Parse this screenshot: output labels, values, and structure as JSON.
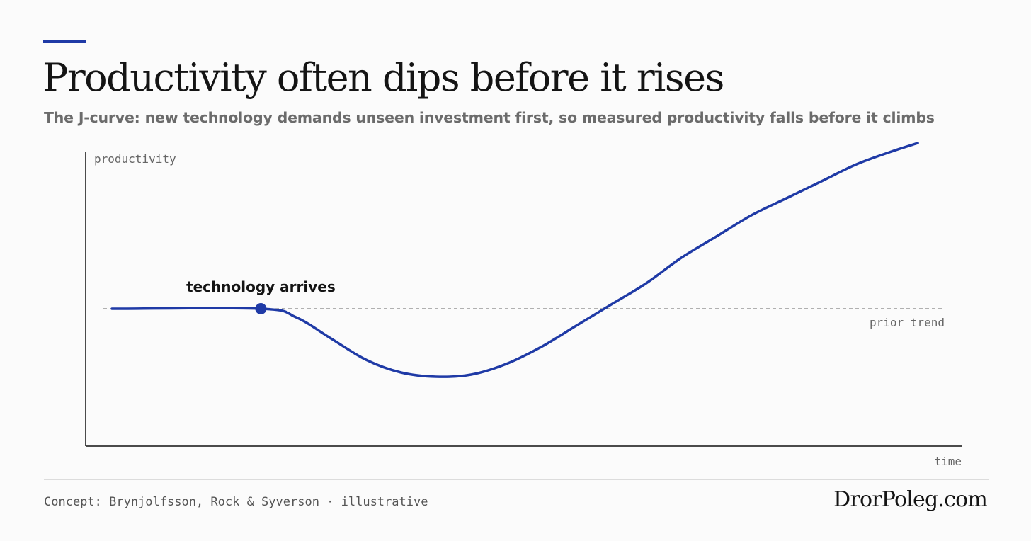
{
  "header": {
    "title": "Productivity often dips before it rises",
    "subtitle": "The J-curve: new technology demands unseen investment first, so measured productivity falls before it climbs"
  },
  "colors": {
    "accent": "#1f3aa6",
    "axis": "#111111",
    "reference_line": "#666666"
  },
  "chart_data": {
    "type": "line",
    "xlabel": "time",
    "ylabel": "productivity",
    "xlim": [
      0,
      100
    ],
    "ylim": [
      0,
      100
    ],
    "grid": false,
    "series": [
      {
        "x": [
          3,
          20,
          24,
          28,
          32,
          36,
          40,
          44,
          48,
          52,
          56,
          60,
          64,
          68,
          72,
          76,
          80,
          84,
          88,
          92,
          95
        ],
        "y": [
          50,
          50,
          48,
          43,
          38,
          35,
          34,
          34.5,
          37,
          41,
          46,
          51,
          56,
          62,
          67,
          72,
          76,
          80,
          84,
          87,
          89
        ]
      }
    ],
    "reference_lines": [
      {
        "y": 50,
        "label": "prior trend",
        "style": "dashed"
      }
    ],
    "annotations": [
      {
        "x": 20,
        "y": 50,
        "text": "technology arrives",
        "marker": "dot"
      }
    ]
  },
  "footer": {
    "credit": "Concept: Brynjolfsson, Rock & Syverson · illustrative",
    "brand": "DrorPoleg.com"
  }
}
